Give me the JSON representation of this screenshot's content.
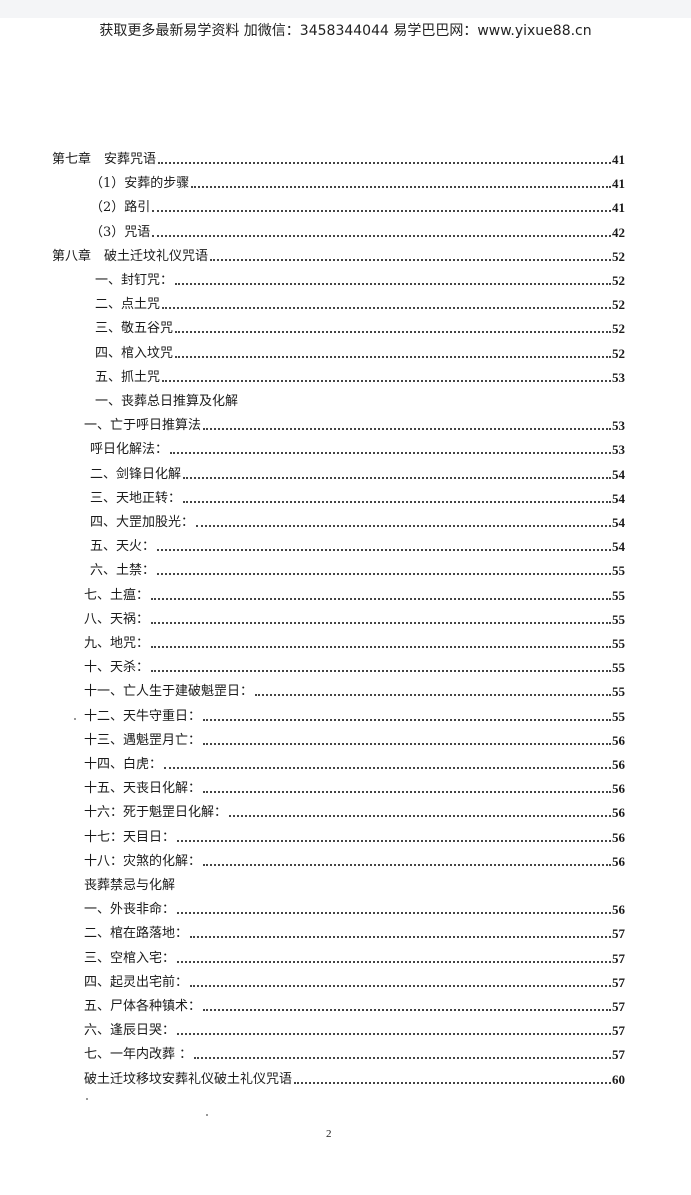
{
  "header": {
    "text": "获取更多最新易学资料 加微信：3458344044 易学巴巴网：www.yixue88.cn"
  },
  "toc": [
    {
      "label": "第七章　安葬咒语",
      "page": "41",
      "indent": 0
    },
    {
      "label": "（1）安葬的步骤",
      "page": "41",
      "indent": 2
    },
    {
      "label": "（2）路引",
      "page": "41",
      "indent": 2
    },
    {
      "label": "（3）咒语",
      "page": "42",
      "indent": 2
    },
    {
      "label": "第八章　破土迁坟礼仪咒语",
      "page": "52",
      "indent": 0
    },
    {
      "label": "一、封钉咒：",
      "page": "52",
      "indent": 3
    },
    {
      "label": "二、点土咒",
      "page": "52",
      "indent": 3
    },
    {
      "label": "三、敬五谷咒",
      "page": "52",
      "indent": 3
    },
    {
      "label": "四、棺入坟咒",
      "page": "52",
      "indent": 3
    },
    {
      "label": "五、抓土咒",
      "page": "53",
      "indent": 3
    },
    {
      "label": "一、丧葬总日推算及化解",
      "page": "",
      "indent": 3
    },
    {
      "label": "一、亡于呼日推算法",
      "page": "53",
      "indent": 1
    },
    {
      "label": "呼日化解法：",
      "page": "53",
      "indent": 2
    },
    {
      "label": "二、剑锋日化解",
      "page": "54",
      "indent": 2
    },
    {
      "label": "三、天地正转：",
      "page": "54",
      "indent": 2
    },
    {
      "label": "四、大罡加股光：",
      "page": "54",
      "indent": 2
    },
    {
      "label": "五、天火：",
      "page": "54",
      "indent": 2
    },
    {
      "label": "六、土禁：",
      "page": "55",
      "indent": 2
    },
    {
      "label": "七、土瘟：",
      "page": "55",
      "indent": 1
    },
    {
      "label": "八、天祸：",
      "page": "55",
      "indent": 1
    },
    {
      "label": "九、地咒：",
      "page": "55",
      "indent": 1
    },
    {
      "label": "十、天杀：",
      "page": "55",
      "indent": 1
    },
    {
      "label": "十一、亡人生于建破魁罡日：",
      "page": "55",
      "indent": 1
    },
    {
      "label": "十二、天牛守重日：",
      "page": "55",
      "indent": 1
    },
    {
      "label": "十三、遇魁罡月亡：",
      "page": "56",
      "indent": 1
    },
    {
      "label": "十四、白虎：",
      "page": "56",
      "indent": 1
    },
    {
      "label": "十五、天丧日化解：",
      "page": "56",
      "indent": 1
    },
    {
      "label": "十六：死于魁罡日化解：",
      "page": "56",
      "indent": 1
    },
    {
      "label": "十七：天目日：",
      "page": "56",
      "indent": 1
    },
    {
      "label": "十八：灾煞的化解：",
      "page": "56",
      "indent": 1
    },
    {
      "label": "丧葬禁忌与化解",
      "page": "",
      "indent": 1
    },
    {
      "label": "一、外丧非命：",
      "page": "56",
      "indent": 1
    },
    {
      "label": "二、棺在路落地：",
      "page": "57",
      "indent": 1
    },
    {
      "label": "三、空棺入宅：",
      "page": "57",
      "indent": 1
    },
    {
      "label": "四、起灵出宅前：",
      "page": "57",
      "indent": 1
    },
    {
      "label": "五、尸体各种镇术：",
      "page": "57",
      "indent": 1
    },
    {
      "label": "六、逢辰日哭：",
      "page": "57",
      "indent": 1
    },
    {
      "label": "七、一年内改葬 ：",
      "page": "57",
      "indent": 1
    },
    {
      "label": "破土迁坟移坟安葬礼仪破土礼仪咒语",
      "page": "60",
      "indent": 1
    }
  ],
  "footer": {
    "page_number": "2"
  }
}
